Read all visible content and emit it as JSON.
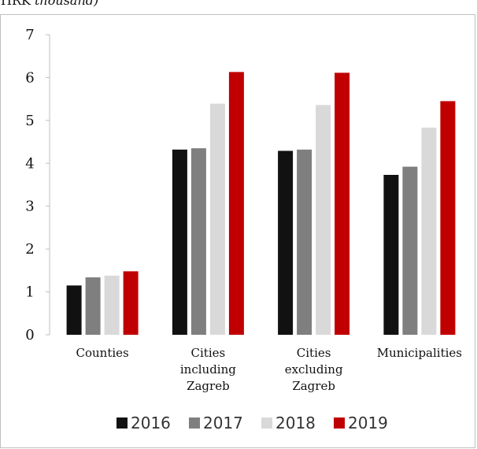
{
  "unit_label": {
    "prefix": "HRK ",
    "qualifier": "thousand)"
  },
  "chart_data": {
    "type": "bar",
    "categories": [
      [
        "Counties"
      ],
      [
        "Cities",
        "including",
        "Zagreb"
      ],
      [
        "Cities",
        "excluding",
        "Zagreb"
      ],
      [
        "Municipalities"
      ]
    ],
    "series": [
      {
        "name": "2016",
        "color": "#111111",
        "values": [
          1.15,
          4.32,
          4.29,
          3.73
        ]
      },
      {
        "name": "2017",
        "color": "#7f7f7f",
        "values": [
          1.34,
          4.35,
          4.32,
          3.92
        ]
      },
      {
        "name": "2018",
        "color": "#d9d9d9",
        "values": [
          1.38,
          5.39,
          5.36,
          4.83
        ]
      },
      {
        "name": "2019",
        "color": "#c00000",
        "values": [
          1.48,
          6.13,
          6.11,
          5.45
        ]
      }
    ],
    "ylim": [
      0,
      7
    ],
    "yticks": [
      0,
      1,
      2,
      3,
      4,
      5,
      6,
      7
    ],
    "grid": false,
    "legend_position": "bottom"
  }
}
